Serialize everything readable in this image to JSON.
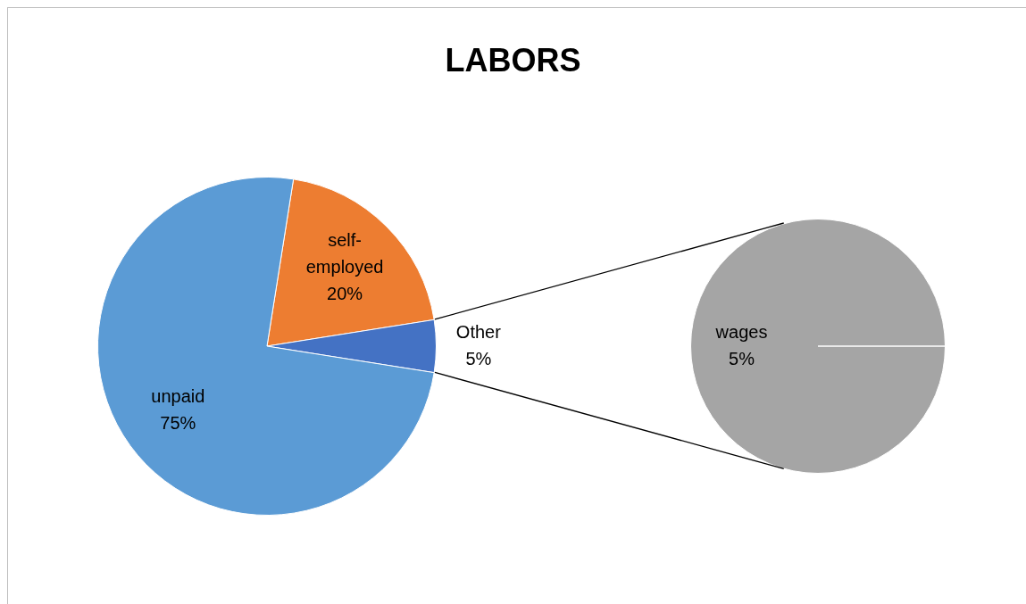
{
  "chart_data": [
    {
      "type": "pie",
      "title": "LABORS",
      "categories": [
        "self-employed",
        "Other",
        "unpaid"
      ],
      "values": [
        20,
        5,
        75
      ],
      "colors": [
        "#ed7d31",
        "#4472c4",
        "#5b9bd5"
      ],
      "value_labels": [
        "20%",
        "5%",
        "75%"
      ],
      "legend": false
    },
    {
      "type": "pie",
      "categories": [
        "wages"
      ],
      "values": [
        5
      ],
      "colors": [
        "#a5a5a5"
      ],
      "value_labels": [
        "5%"
      ],
      "legend": false
    }
  ]
}
